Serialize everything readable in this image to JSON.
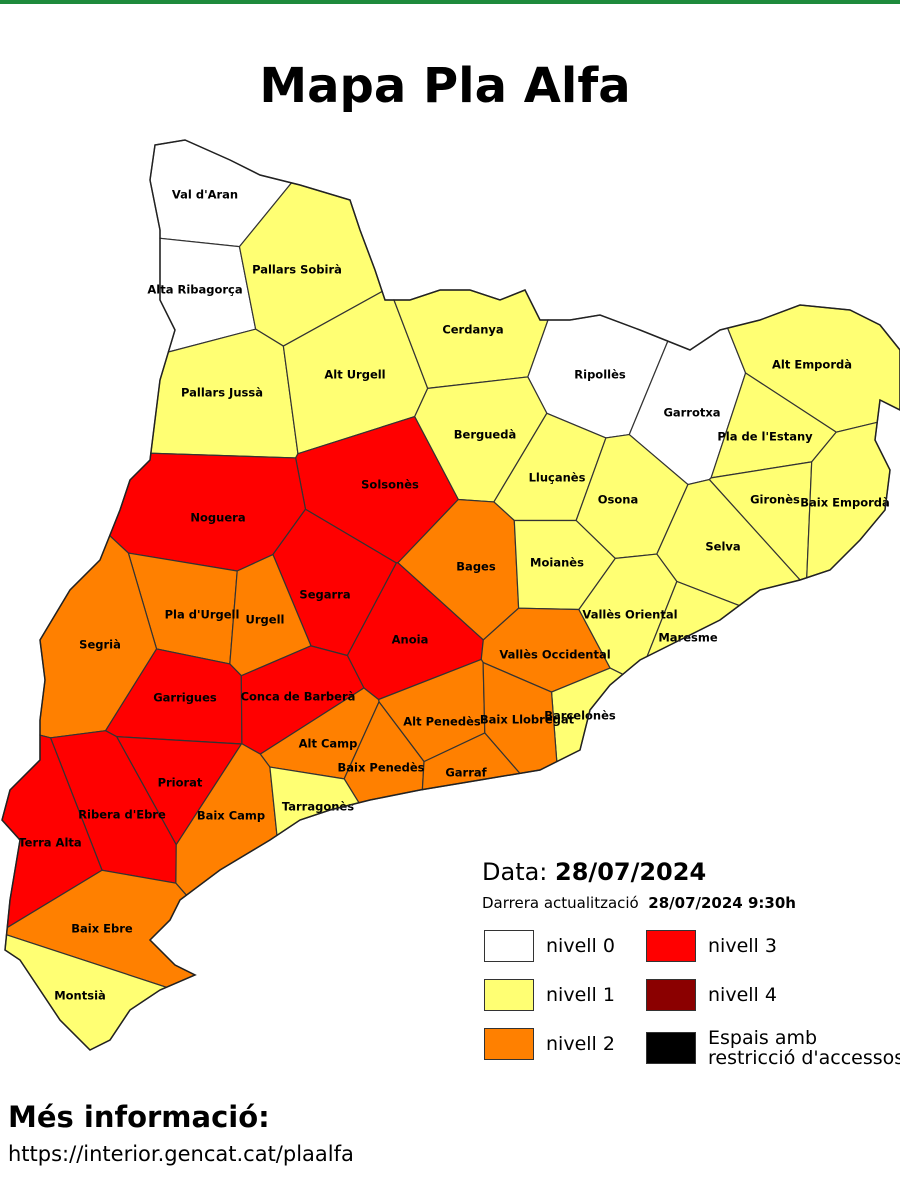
{
  "title": "Mapa Pla Alfa",
  "regions": [
    {
      "name": "Val d'Aran",
      "color": "#ffffff"
    },
    {
      "name": "Alta Ribagorça",
      "color": "#ffffff"
    },
    {
      "name": "Pallars Sobirà",
      "color": "#ffff73"
    },
    {
      "name": "Pallars Jussà",
      "color": "#ffff73"
    },
    {
      "name": "Alt Urgell",
      "color": "#ffff73"
    },
    {
      "name": "Cerdanya",
      "color": "#ffff73"
    },
    {
      "name": "Ripollès",
      "color": "#ffffff"
    },
    {
      "name": "Garrotxa",
      "color": "#ffffff"
    },
    {
      "name": "Alt Empordà",
      "color": "#ffff73"
    },
    {
      "name": "Pla de l'Estany",
      "color": "#ffff73"
    },
    {
      "name": "Berguedà",
      "color": "#ffff73"
    },
    {
      "name": "Lluçanès",
      "color": "#ffff73"
    },
    {
      "name": "Osona",
      "color": "#ffff73"
    },
    {
      "name": "Gironès",
      "color": "#ffff73"
    },
    {
      "name": "Baix Empordà",
      "color": "#ffff73"
    },
    {
      "name": "Selva",
      "color": "#ffff73"
    },
    {
      "name": "Solsonès",
      "color": "#ff0000"
    },
    {
      "name": "Noguera",
      "color": "#ff0000"
    },
    {
      "name": "Bages",
      "color": "#ff8000"
    },
    {
      "name": "Moianès",
      "color": "#ffff73"
    },
    {
      "name": "Segarra",
      "color": "#ff0000"
    },
    {
      "name": "Pla d'Urgell",
      "color": "#ff8000"
    },
    {
      "name": "Urgell",
      "color": "#ff8000"
    },
    {
      "name": "Segrià",
      "color": "#ff8000"
    },
    {
      "name": "Anoia",
      "color": "#ff0000"
    },
    {
      "name": "Vallès Occidental",
      "color": "#ff8000"
    },
    {
      "name": "Vallès Oriental",
      "color": "#ffff73"
    },
    {
      "name": "Maresme",
      "color": "#ffff73"
    },
    {
      "name": "Garrigues",
      "color": "#ff0000"
    },
    {
      "name": "Conca de Barberà",
      "color": "#ff0000"
    },
    {
      "name": "Barcelonès",
      "color": "#ffff73"
    },
    {
      "name": "Alt Penedès",
      "color": "#ff8000"
    },
    {
      "name": "Baix Llobregat",
      "color": "#ff8000"
    },
    {
      "name": "Alt Camp",
      "color": "#ff8000"
    },
    {
      "name": "Baix Penedès",
      "color": "#ff8000"
    },
    {
      "name": "Garraf",
      "color": "#ff8000"
    },
    {
      "name": "Priorat",
      "color": "#ff0000"
    },
    {
      "name": "Ribera d'Ebre",
      "color": "#ff0000"
    },
    {
      "name": "Baix Camp",
      "color": "#ff8000"
    },
    {
      "name": "Tarragonès",
      "color": "#ffff73"
    },
    {
      "name": "Terra Alta",
      "color": "#ff0000"
    },
    {
      "name": "Baix Ebre",
      "color": "#ff8000"
    },
    {
      "name": "Montsià",
      "color": "#ffff73"
    }
  ],
  "date_label": "Data:",
  "date": "28/07/2024",
  "update_label": "Darrera actualització",
  "update": "28/07/2024 9:30h",
  "legend": [
    {
      "label": "nivell 0",
      "color": "#ffffff"
    },
    {
      "label": "nivell 1",
      "color": "#ffff73"
    },
    {
      "label": "nivell 2",
      "color": "#ff8000"
    },
    {
      "label": "nivell 3",
      "color": "#ff0000"
    },
    {
      "label": "nivell 4",
      "color": "#8b0000"
    },
    {
      "label": "Espais amb restricció d'accessos",
      "color": "#000000"
    }
  ],
  "footer": {
    "heading": "Més informació:",
    "url": "https://interior.gencat.cat/plaalfa"
  }
}
